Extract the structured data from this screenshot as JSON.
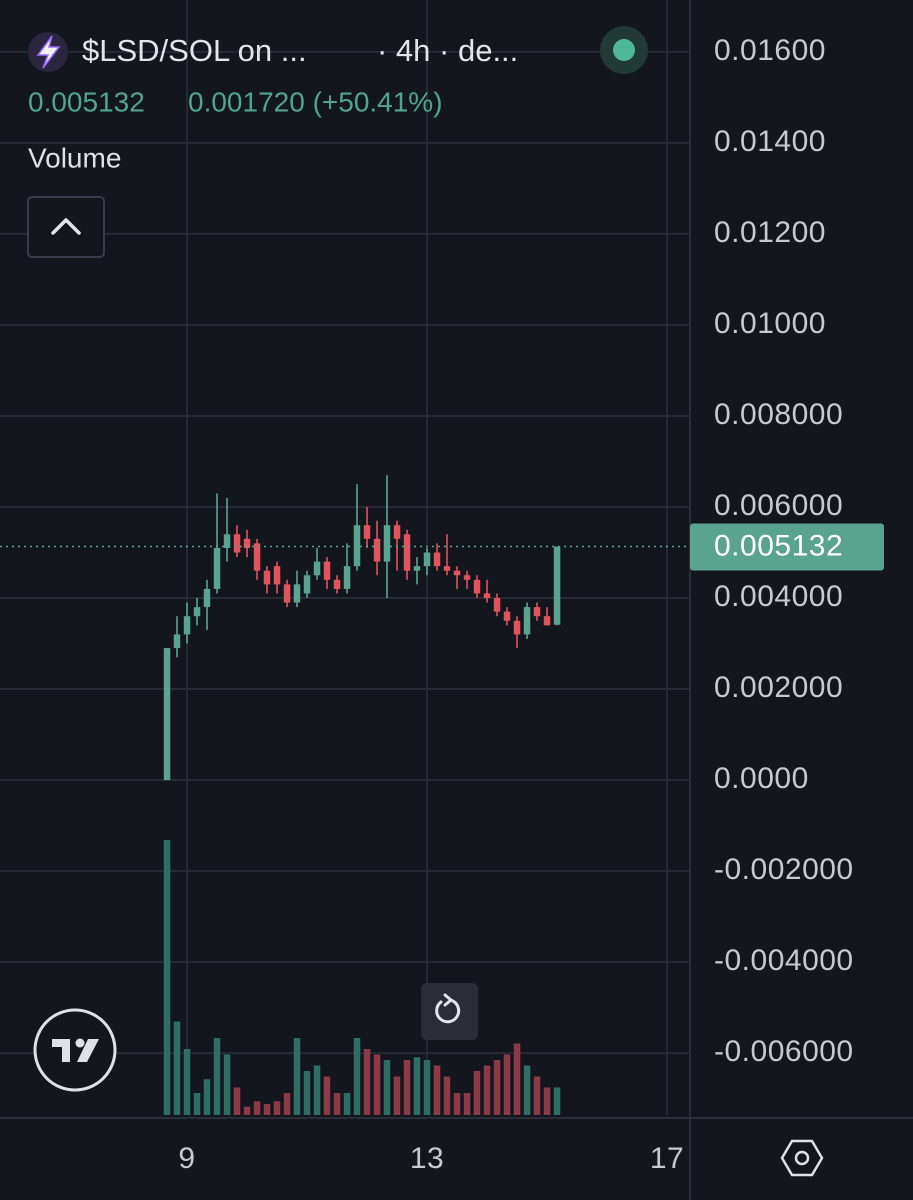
{
  "header": {
    "symbol": "$LSD/SOL on ...",
    "interval": "· 4h · de...",
    "price": "0.005132",
    "change": "0.001720 (+50.41%)",
    "volume_label": "Volume"
  },
  "chart_data": {
    "type": "candlestick",
    "x": [
      8.667,
      8.833,
      9,
      9.167,
      9.333,
      9.5,
      9.667,
      9.833,
      10,
      10.167,
      10.333,
      10.5,
      10.667,
      10.833,
      11,
      11.167,
      11.333,
      11.5,
      11.667,
      11.833,
      12,
      12.167,
      12.333,
      12.5,
      12.667,
      12.833,
      13,
      13.167,
      13.333,
      13.5,
      13.667,
      13.833,
      14,
      14.167,
      14.333,
      14.5,
      14.667,
      14.833,
      15,
      15.167
    ],
    "open": [
      0,
      0.0029,
      0.0032,
      0.0036,
      0.0038,
      0.0042,
      0.0051,
      0.0054,
      0.0053,
      0.0052,
      0.0046,
      0.0047,
      0.0043,
      0.0039,
      0.0041,
      0.0045,
      0.0048,
      0.0044,
      0.0042,
      0.0047,
      0.0056,
      0.0053,
      0.0048,
      0.0056,
      0.0054,
      0.0046,
      0.0047,
      0.005,
      0.0047,
      0.0046,
      0.0045,
      0.0044,
      0.0041,
      0.004,
      0.0037,
      0.0035,
      0.0032,
      0.0038,
      0.0036,
      0.003412
    ],
    "high": [
      0.0029,
      0.0036,
      0.0039,
      0.004,
      0.0044,
      0.0063,
      0.0062,
      0.0056,
      0.0055,
      0.0053,
      0.0047,
      0.0048,
      0.0044,
      0.0046,
      0.0046,
      0.0051,
      0.0049,
      0.0045,
      0.0052,
      0.0065,
      0.006,
      0.0057,
      0.0067,
      0.0057,
      0.0055,
      0.0049,
      0.0051,
      0.0052,
      0.0054,
      0.0047,
      0.0046,
      0.0045,
      0.0044,
      0.0041,
      0.0038,
      0.0036,
      0.0039,
      0.0039,
      0.0038,
      0.005132
    ],
    "low": [
      0,
      0.0027,
      0.003,
      0.0034,
      0.0033,
      0.0041,
      0.0048,
      0.0049,
      0.0049,
      0.0044,
      0.0041,
      0.0041,
      0.0038,
      0.0038,
      0.004,
      0.0044,
      0.0042,
      0.0041,
      0.0041,
      0.0046,
      0.0051,
      0.0045,
      0.004,
      0.0046,
      0.0044,
      0.0043,
      0.0045,
      0.0046,
      0.0045,
      0.0042,
      0.0042,
      0.004,
      0.0039,
      0.0036,
      0.0034,
      0.0029,
      0.0031,
      0.0035,
      0.0034,
      0.0034
    ],
    "close": [
      0.0029,
      0.0032,
      0.0036,
      0.0038,
      0.0042,
      0.0051,
      0.0054,
      0.005,
      0.0051,
      0.0046,
      0.0043,
      0.0043,
      0.0039,
      0.0043,
      0.0045,
      0.0048,
      0.0044,
      0.0042,
      0.0047,
      0.0056,
      0.0053,
      0.0048,
      0.0056,
      0.0053,
      0.0046,
      0.0047,
      0.005,
      0.0047,
      0.0046,
      0.0045,
      0.0044,
      0.0041,
      0.004,
      0.0037,
      0.0035,
      0.0032,
      0.0038,
      0.0036,
      0.0034,
      0.005132
    ],
    "volume": [
      100,
      34,
      24,
      8,
      13,
      28,
      22,
      10,
      3,
      5,
      4,
      5,
      8,
      28,
      16,
      18,
      14,
      8,
      8,
      28,
      24,
      22,
      20,
      14,
      20,
      21,
      20,
      18,
      14,
      8,
      8,
      16,
      18,
      20,
      22,
      26,
      18,
      14,
      10,
      10
    ],
    "up_color": "#5aa48f",
    "down_color": "#e0545e",
    "volume_up_color": "#2f6f63",
    "volume_down_color": "#8c3a48",
    "ylim": [
      -0.00736,
      0.01714
    ],
    "yticks": [
      {
        "value": 0.016,
        "label": "0.01600"
      },
      {
        "value": 0.014,
        "label": "0.01400"
      },
      {
        "value": 0.012,
        "label": "0.01200"
      },
      {
        "value": 0.01,
        "label": "0.01000"
      },
      {
        "value": 0.008,
        "label": "0.008000"
      },
      {
        "value": 0.006,
        "label": "0.006000"
      },
      {
        "value": 0.004,
        "label": "0.004000"
      },
      {
        "value": 0.002,
        "label": "0.002000"
      },
      {
        "value": 0,
        "label": "0.0000"
      },
      {
        "value": -0.002,
        "label": "-0.002000"
      },
      {
        "value": -0.004,
        "label": "-0.004000"
      },
      {
        "value": -0.006,
        "label": "-0.006000"
      }
    ],
    "xlim": [
      5.883,
      17.383
    ],
    "xticks": [
      9,
      13,
      17
    ],
    "volume_lim": [
      0,
      100
    ],
    "last_price": 0.005132,
    "grid": true
  }
}
